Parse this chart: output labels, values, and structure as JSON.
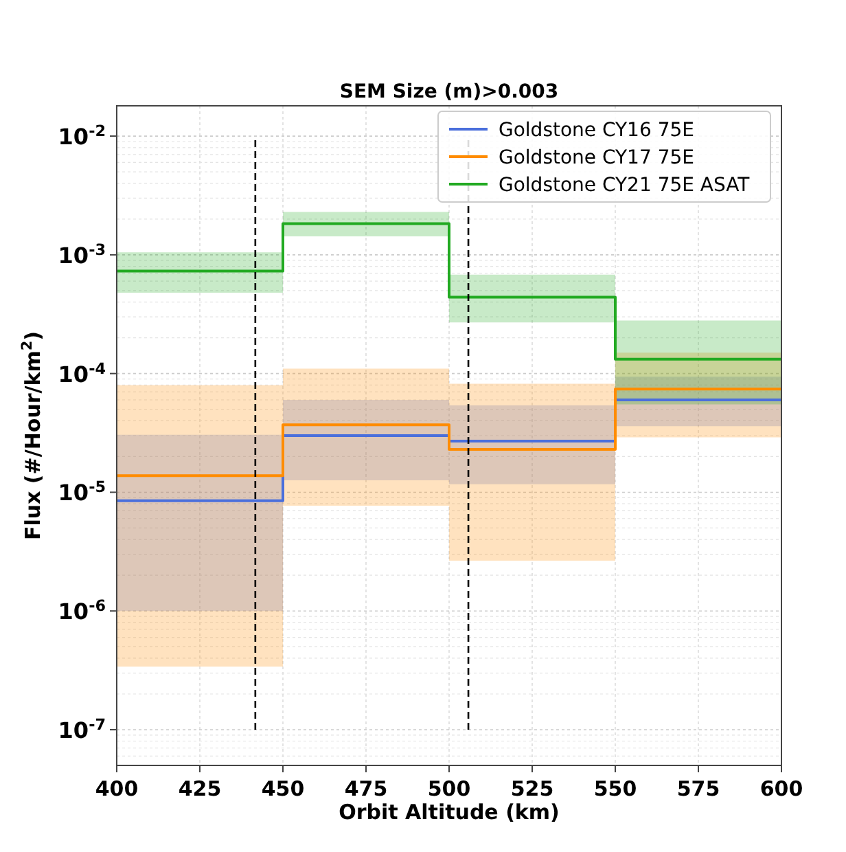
{
  "chart_data": {
    "type": "step",
    "title": "SEM Size (m)>0.003",
    "xlabel": "Orbit Altitude (km)",
    "ylabel": "Flux (#/Hour/km$^{2}$)",
    "x": [
      400,
      450,
      500,
      550,
      600
    ],
    "series": [
      {
        "name": "Goldstone CY16 75E",
        "color": "#4a6fdc",
        "values": [
          8.5e-06,
          3e-05,
          2.7e-05,
          6e-05,
          6e-05
        ],
        "lower": [
          1e-06,
          1.26e-05,
          1.17e-05,
          3.6e-05,
          3.6e-05
        ],
        "upper": [
          3.05e-05,
          6e-05,
          5.4e-05,
          9.4e-05,
          9.4e-05
        ]
      },
      {
        "name": "Goldstone CY17 75E",
        "color": "#ff8c00",
        "values": [
          1.38e-05,
          3.7e-05,
          2.3e-05,
          7.4e-05,
          7.4e-05
        ],
        "lower": [
          3.4e-07,
          7.7e-06,
          2.65e-06,
          2.9e-05,
          2.9e-05
        ],
        "upper": [
          8e-05,
          0.00011,
          8.2e-05,
          0.00015,
          0.00015
        ]
      },
      {
        "name": "Goldstone CY21 75E ASAT",
        "color": "#22aa22",
        "values": [
          0.00073,
          0.00183,
          0.00044,
          0.000132,
          0.000132
        ],
        "lower": [
          0.00048,
          0.00143,
          0.00027,
          5.5e-05,
          5.5e-05
        ],
        "upper": [
          0.00105,
          0.0023,
          0.00068,
          0.00028,
          0.00028
        ]
      }
    ],
    "ref_lines": [
      {
        "axis": "x",
        "value": 441.7,
        "color": "#000000",
        "line_style": "dashed"
      },
      {
        "axis": "x",
        "value": 505.8,
        "color": "#000000",
        "line_style": "dashed"
      }
    ],
    "xlim": [
      400,
      600
    ],
    "xticks": [
      400,
      425,
      450,
      475,
      500,
      525,
      550,
      575,
      600
    ],
    "ylim": [
      5e-08,
      0.018
    ],
    "yticks": [
      {
        "value": 1e-07,
        "label": "10$^{-7}$"
      },
      {
        "value": 1e-06,
        "label": "10$^{-6}$"
      },
      {
        "value": 1e-05,
        "label": "10$^{-5}$"
      },
      {
        "value": 0.0001,
        "label": "10$^{-4}$"
      },
      {
        "value": 0.001,
        "label": "10$^{-3}$"
      },
      {
        "value": 0.01,
        "label": "10$^{-2}$"
      }
    ],
    "log": true,
    "grid": true,
    "legend": "top right",
    "line_style": "solid",
    "marker": "none"
  }
}
